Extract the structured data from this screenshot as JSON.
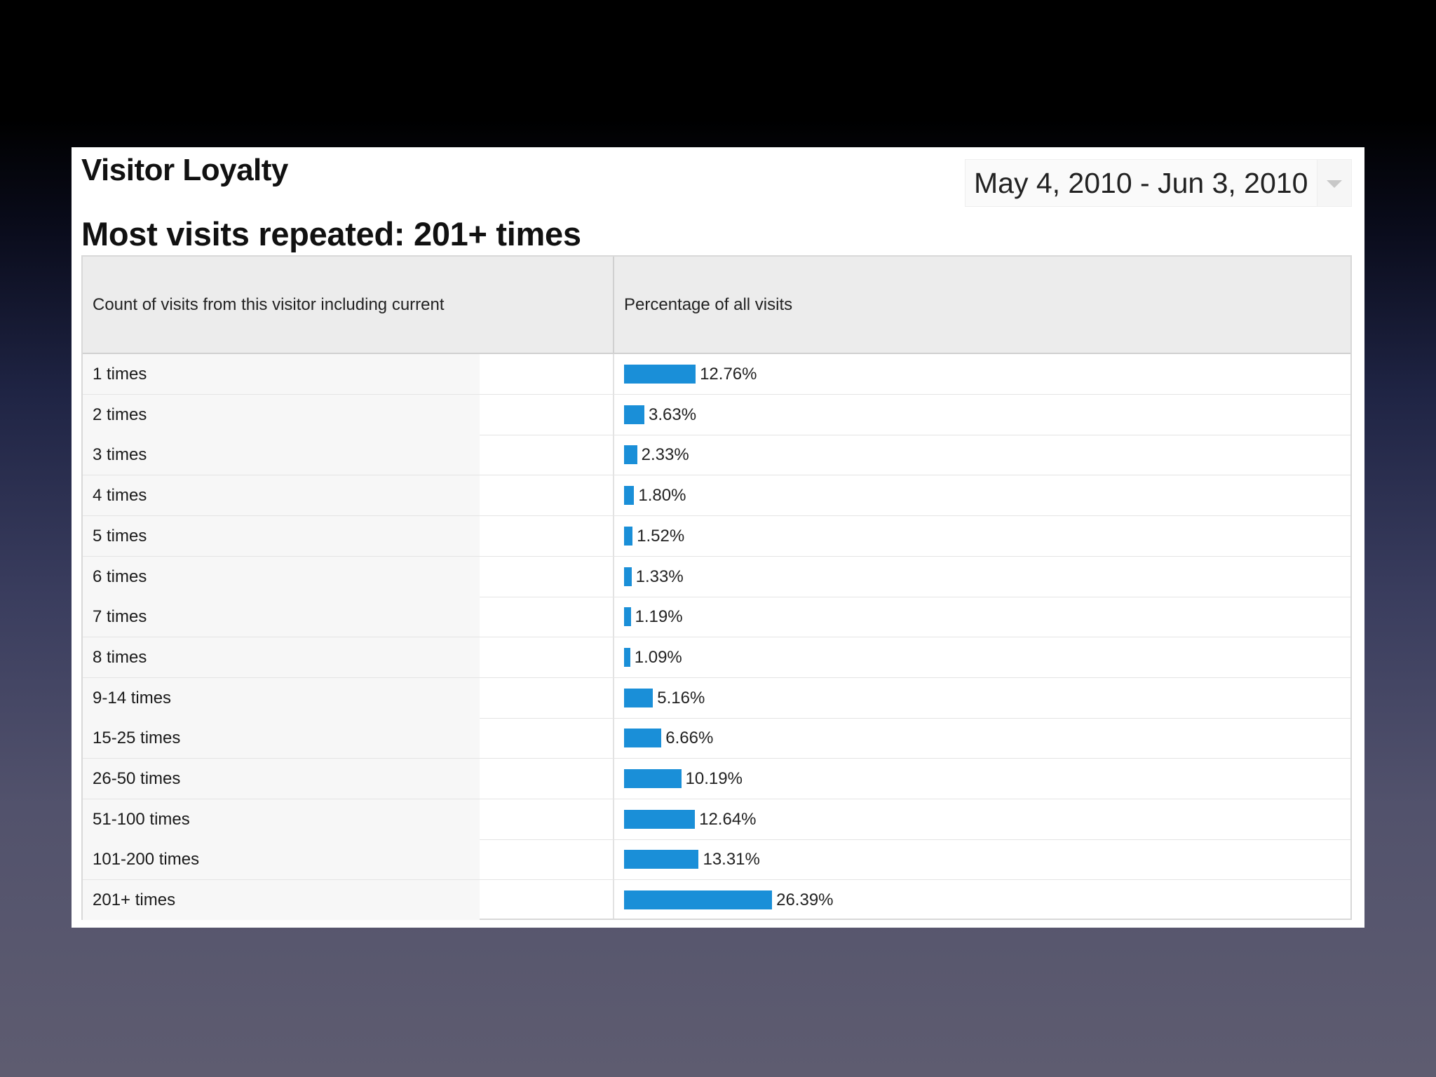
{
  "report": {
    "title": "Visitor Loyalty",
    "date_range": "May 4, 2010 - Jun 3, 2010",
    "subtitle": "Most visits repeated: 201+ times"
  },
  "table": {
    "headers": {
      "count": "Count of visits from this visitor including current",
      "percentage": "Percentage of all visits"
    }
  },
  "colors": {
    "bar": "#1a8fd8",
    "header_bg": "#ececec",
    "label_bg": "#f7f7f7"
  },
  "chart_data": {
    "type": "bar",
    "orientation": "horizontal",
    "title": "Most visits repeated: 201+ times",
    "xlabel": "Percentage of all visits",
    "ylabel": "Count of visits from this visitor including current",
    "categories": [
      "1 times",
      "2 times",
      "3 times",
      "4 times",
      "5 times",
      "6 times",
      "7 times",
      "8 times",
      "9-14 times",
      "15-25 times",
      "26-50 times",
      "51-100 times",
      "101-200 times",
      "201+ times"
    ],
    "values": [
      12.76,
      3.63,
      2.33,
      1.8,
      1.52,
      1.33,
      1.19,
      1.09,
      5.16,
      6.66,
      10.19,
      12.64,
      13.31,
      26.39
    ],
    "value_labels": [
      "12.76%",
      "3.63%",
      "2.33%",
      "1.80%",
      "1.52%",
      "1.33%",
      "1.19%",
      "1.09%",
      "5.16%",
      "6.66%",
      "10.19%",
      "12.64%",
      "13.31%",
      "26.39%"
    ],
    "xlim": [
      0,
      100
    ],
    "grid": false,
    "legend": "none"
  }
}
